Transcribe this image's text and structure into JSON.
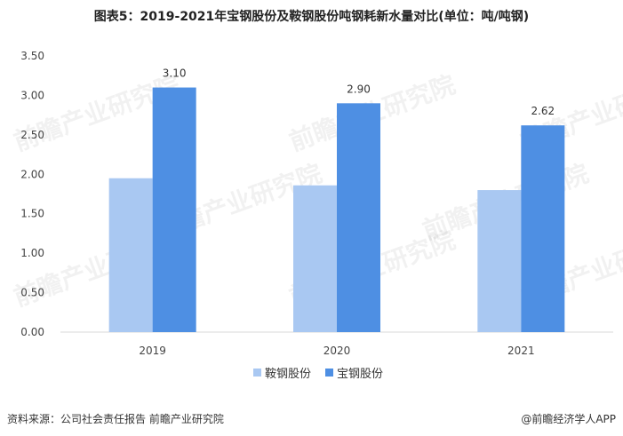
{
  "title": "图表5：2019-2021年宝钢股份及鞍钢股份吨钢耗新水量对比(单位：吨/吨钢)",
  "footer": {
    "source": "资料来源：公司社会责任报告 前瞻产业研究院",
    "credit_symbol": "@",
    "credit": "前瞻经济学人APP"
  },
  "watermark": "前瞻产业研究院",
  "colors": {
    "series1": "#a9c8f2",
    "series2": "#4e8fe3",
    "axis": "#d9d9d9"
  },
  "chart_data": {
    "type": "bar",
    "categories": [
      "2019",
      "2020",
      "2021"
    ],
    "series": [
      {
        "name": "鞍钢股份",
        "values": [
          1.95,
          1.86,
          1.8
        ],
        "labels": []
      },
      {
        "name": "宝钢股份",
        "values": [
          3.1,
          2.9,
          2.62
        ],
        "labels": [
          "3.10",
          "2.90",
          "2.62"
        ]
      }
    ],
    "yticks": [
      "0.00",
      "0.50",
      "1.00",
      "1.50",
      "2.00",
      "2.50",
      "3.00",
      "3.50"
    ],
    "ylim": [
      0,
      3.5
    ],
    "legend_position": "bottom",
    "grid": false
  }
}
